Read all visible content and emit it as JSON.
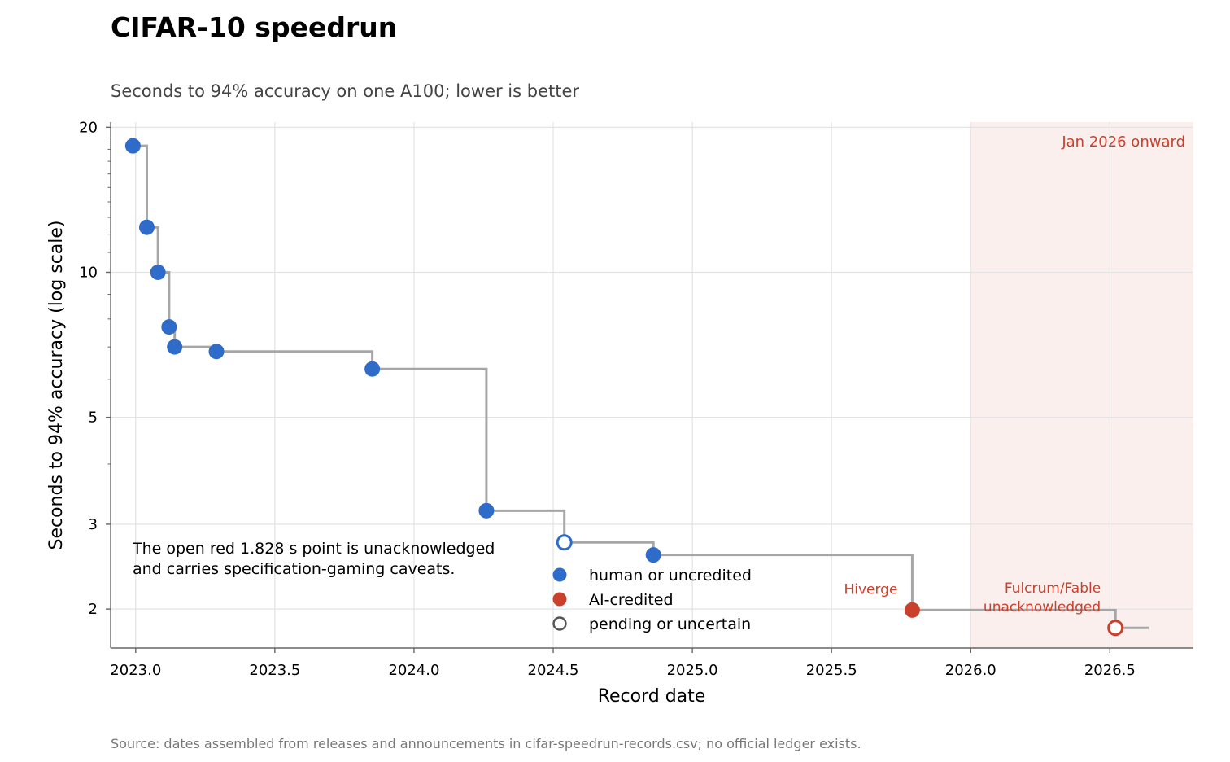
{
  "chart_data": {
    "type": "scatter",
    "title": "CIFAR-10 speedrun",
    "subtitle": "Seconds to 94% accuracy on one A100; lower is better",
    "xlabel": "Record date",
    "ylabel": "Seconds to 94% accuracy (log scale)",
    "y_scale": "log",
    "xlim": [
      2022.91,
      2026.8
    ],
    "ylim": [
      1.66,
      20.5
    ],
    "x_ticks": [
      2023.0,
      2023.5,
      2024.0,
      2024.5,
      2025.0,
      2025.5,
      2026.0,
      2026.5
    ],
    "x_tick_labels": [
      "2023.0",
      "2023.5",
      "2024.0",
      "2024.5",
      "2025.0",
      "2025.5",
      "2026.0",
      "2026.5"
    ],
    "y_ticks": [
      2,
      3,
      5,
      10,
      20
    ],
    "y_tick_labels": [
      "2",
      "3",
      "5",
      "10",
      "20"
    ],
    "grid": true,
    "step_end_x": 2026.64,
    "points": [
      {
        "x": 2022.99,
        "y": 18.3,
        "category": "human"
      },
      {
        "x": 2023.04,
        "y": 12.4,
        "category": "human"
      },
      {
        "x": 2023.08,
        "y": 10.0,
        "category": "human"
      },
      {
        "x": 2023.12,
        "y": 7.7,
        "category": "human"
      },
      {
        "x": 2023.14,
        "y": 7.0,
        "category": "human"
      },
      {
        "x": 2023.29,
        "y": 6.85,
        "category": "human"
      },
      {
        "x": 2023.85,
        "y": 6.3,
        "category": "human"
      },
      {
        "x": 2024.26,
        "y": 3.2,
        "category": "human"
      },
      {
        "x": 2024.54,
        "y": 2.75,
        "category": "human",
        "pending": true
      },
      {
        "x": 2024.86,
        "y": 2.59,
        "category": "human"
      },
      {
        "x": 2025.79,
        "y": 1.99,
        "category": "ai",
        "label": "Hiverge"
      },
      {
        "x": 2026.52,
        "y": 1.828,
        "category": "ai",
        "pending": true,
        "label": "Fulcrum/Fable\nunacknowledged"
      }
    ],
    "shaded_region": {
      "x_start": 2026.0,
      "x_end": 2026.8,
      "label": "Jan 2026 onward"
    },
    "legend": {
      "placement": "lower-center",
      "entries": [
        {
          "label": "human or uncredited",
          "style": "filled",
          "color": "#2f6cc9"
        },
        {
          "label": "AI-credited",
          "style": "filled",
          "color": "#c9402c"
        },
        {
          "label": "pending or uncertain",
          "style": "open",
          "color": "#555555"
        }
      ]
    },
    "note_lines": [
      "The open red 1.828 s point is unacknowledged",
      "and carries specification-gaming caveats."
    ],
    "source": "Source: dates assembled from releases and announcements in cifar-speedrun-records.csv; no official ledger exists.",
    "colors": {
      "human": "#2f6cc9",
      "ai": "#c9402c",
      "step_line": "#a6a6a6",
      "grid": "#e3e3e3",
      "region_fill": "#fbefed",
      "annotation": "#c9402c"
    }
  }
}
